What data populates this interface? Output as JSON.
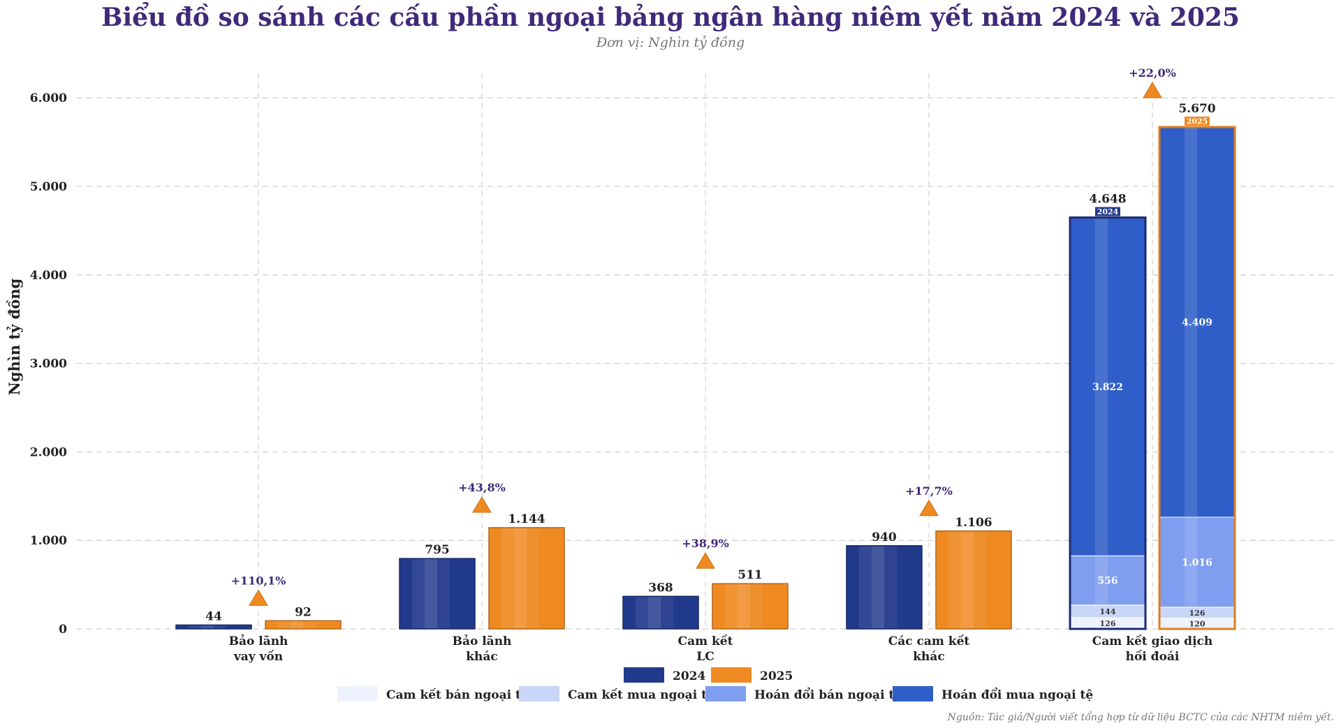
{
  "chart_data": {
    "type": "bar",
    "title": "Biểu đồ so sánh các cấu phần ngoại bảng ngân hàng niêm yết năm 2024 và 2025",
    "subtitle": "Đơn vị: Nghìn tỷ đồng",
    "ylabel": "Nghìn tỷ đồng",
    "xlabel": "",
    "ylim": [
      0,
      6300
    ],
    "yticks": [
      "0",
      "1.000",
      "2.000",
      "3.000",
      "4.000",
      "5.000",
      "6.000"
    ],
    "ytick_values": [
      0,
      1000,
      2000,
      3000,
      4000,
      5000,
      6000
    ],
    "grid": true,
    "categories": [
      [
        "Bảo lãnh",
        "vay vốn"
      ],
      [
        "Bảo lãnh",
        "khác"
      ],
      [
        "Cam kết",
        "LC"
      ],
      [
        "Các cam kết",
        "khác"
      ],
      [
        "Cam kết giao dịch",
        "hối đoái"
      ]
    ],
    "series": [
      {
        "name": "2024",
        "color": "#223a8c",
        "values": [
          44,
          795,
          368,
          940,
          4648
        ],
        "value_labels": [
          "44",
          "795",
          "368",
          "940",
          "4.648"
        ]
      },
      {
        "name": "2025",
        "color": "#ef8a22",
        "values": [
          92,
          1144,
          511,
          1106,
          5670
        ],
        "value_labels": [
          "92",
          "1.144",
          "511",
          "1.106",
          "5.670"
        ]
      }
    ],
    "growth_labels": [
      "+110,1%",
      "+43,8%",
      "+38,9%",
      "+17,7%",
      "+22,0%"
    ],
    "stacked_breakdown": {
      "category_index": 4,
      "components": [
        {
          "name": "Cam kết bán ngoại tệ",
          "color": "#eef2fd",
          "values": [
            126,
            120
          ],
          "labels": [
            "126",
            "120"
          ]
        },
        {
          "name": "Cam kết mua ngoại tệ",
          "color": "#c9d6f7",
          "values": [
            144,
            126
          ],
          "labels": [
            "144",
            "126"
          ]
        },
        {
          "name": "Hoán đổi bán ngoại tệ",
          "color": "#7f9ef0",
          "values": [
            556,
            1016
          ],
          "labels": [
            "556",
            "1.016"
          ]
        },
        {
          "name": "Hoán đổi mua ngoại tệ",
          "color": "#2f5ec8",
          "values": [
            3822,
            4409
          ],
          "labels": [
            "3.822",
            "4.409"
          ]
        }
      ],
      "year_tags": [
        "2024",
        "2025"
      ]
    },
    "legend_placement": "bottom-center",
    "source": "Nguồn: Tác giả/Người viết tổng hợp từ dữ liệu BCTC của các NHTM niêm yết."
  }
}
